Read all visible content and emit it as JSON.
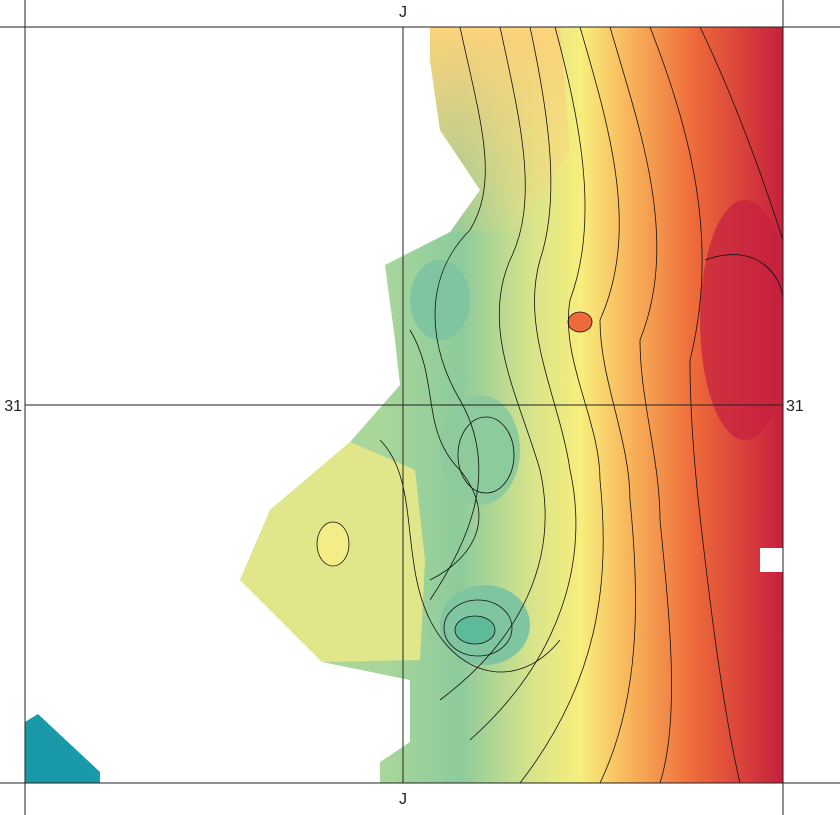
{
  "map": {
    "labels": {
      "top": "J",
      "bottom": "J",
      "left": "31",
      "right": "31"
    }
  }
}
